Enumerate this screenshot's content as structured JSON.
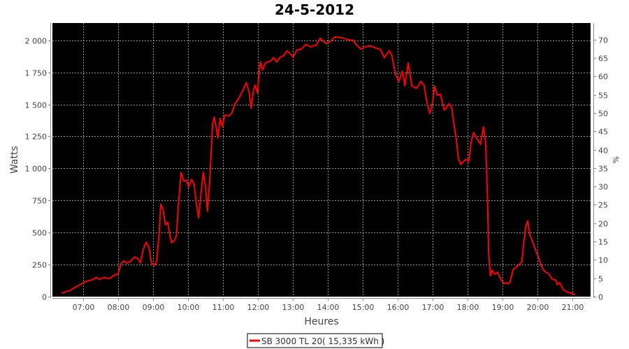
{
  "chart_data": {
    "type": "line",
    "title": "24-5-2012",
    "xlabel": "Heures",
    "ylabel": "Watts",
    "y2label": "%",
    "xlim": [
      "06:07",
      "21:31"
    ],
    "ylim": [
      0,
      2135
    ],
    "y2lim": [
      0,
      74.5
    ],
    "xticks": [
      "07:00",
      "08:00",
      "09:00",
      "10:00",
      "11:00",
      "12:00",
      "13:00",
      "14:00",
      "15:00",
      "16:00",
      "17:00",
      "18:00",
      "19:00",
      "20:00",
      "21:00"
    ],
    "yticks": [
      0,
      250,
      500,
      750,
      1000,
      1250,
      1500,
      1750,
      2000
    ],
    "ytick_labels": [
      "0",
      "250",
      "500",
      "750",
      "1 000",
      "1 250",
      "1 500",
      "1 750",
      "2 000"
    ],
    "y2ticks": [
      0,
      5,
      10,
      15,
      20,
      25,
      30,
      35,
      40,
      45,
      50,
      55,
      60,
      65,
      70
    ],
    "y2tick_labels": [
      "0",
      "5",
      "10",
      "15",
      "20",
      "25",
      "30",
      "35",
      "40",
      "45",
      "50",
      "55",
      "60",
      "65",
      "70"
    ],
    "grid": true,
    "background": "#000000",
    "legend_placement": "bottom",
    "series": [
      {
        "name": "SB 3000 TL 20( 15,335 kWh )",
        "color": "#ff0000",
        "x": [
          "06:23",
          "06:30",
          "06:36",
          "06:45",
          "06:55",
          "07:05",
          "07:15",
          "07:22",
          "07:28",
          "07:35",
          "07:45",
          "07:52",
          "08:00",
          "08:05",
          "08:10",
          "08:15",
          "08:22",
          "08:28",
          "08:33",
          "08:38",
          "08:43",
          "08:48",
          "08:53",
          "08:57",
          "09:03",
          "09:06",
          "09:10",
          "09:13",
          "09:17",
          "09:21",
          "09:25",
          "09:29",
          "09:32",
          "09:37",
          "09:40",
          "09:43",
          "09:48",
          "09:53",
          "09:57",
          "10:01",
          "10:06",
          "10:10",
          "10:15",
          "10:18",
          "10:22",
          "10:26",
          "10:30",
          "10:33",
          "10:37",
          "10:42",
          "10:45",
          "10:49",
          "10:51",
          "10:55",
          "10:59",
          "11:03",
          "11:10",
          "11:15",
          "11:20",
          "11:28",
          "11:35",
          "11:40",
          "11:45",
          "11:48",
          "11:52",
          "11:55",
          "11:59",
          "12:04",
          "12:08",
          "12:13",
          "12:22",
          "12:27",
          "12:32",
          "12:37",
          "12:44",
          "12:50",
          "13:00",
          "13:07",
          "13:14",
          "13:22",
          "13:30",
          "13:40",
          "13:47",
          "13:57",
          "14:06",
          "14:12",
          "14:22",
          "14:35",
          "14:43",
          "14:50",
          "14:57",
          "15:03",
          "15:13",
          "15:22",
          "15:30",
          "15:37",
          "15:45",
          "15:50",
          "15:56",
          "16:02",
          "16:08",
          "16:12",
          "16:18",
          "16:24",
          "16:32",
          "16:40",
          "16:45",
          "16:50",
          "16:55",
          "17:00",
          "17:03",
          "17:08",
          "17:13",
          "17:20",
          "17:28",
          "17:33",
          "17:35",
          "17:40",
          "17:44",
          "17:48",
          "17:52",
          "17:58",
          "18:02",
          "18:06",
          "18:10",
          "18:17",
          "18:22",
          "18:27",
          "18:31",
          "18:34",
          "18:36",
          "18:39",
          "18:42",
          "18:46",
          "18:51",
          "18:57",
          "19:02",
          "19:12",
          "19:18",
          "19:27",
          "19:33",
          "19:36",
          "19:40",
          "19:43",
          "19:47",
          "19:50",
          "19:56",
          "20:01",
          "20:06",
          "20:11",
          "20:20",
          "20:25",
          "20:31",
          "20:34",
          "20:38",
          "20:44",
          "20:52",
          "20:59",
          "21:05"
        ],
        "y": [
          25,
          40,
          45,
          70,
          95,
          120,
          130,
          150,
          135,
          150,
          140,
          165,
          180,
          260,
          280,
          260,
          280,
          310,
          300,
          262,
          370,
          425,
          380,
          260,
          245,
          280,
          480,
          720,
          680,
          560,
          580,
          470,
          420,
          440,
          480,
          700,
          970,
          900,
          910,
          855,
          915,
          880,
          700,
          615,
          800,
          970,
          850,
          665,
          900,
          1350,
          1400,
          1300,
          1237,
          1390,
          1330,
          1417,
          1410,
          1430,
          1500,
          1553,
          1620,
          1670,
          1590,
          1470,
          1600,
          1650,
          1590,
          1835,
          1770,
          1825,
          1840,
          1865,
          1830,
          1865,
          1880,
          1920,
          1870,
          1925,
          1930,
          1968,
          1950,
          1962,
          2017,
          1973,
          2000,
          2027,
          2022,
          2005,
          2000,
          1962,
          1930,
          1950,
          1957,
          1940,
          1930,
          1865,
          1920,
          1880,
          1735,
          1680,
          1760,
          1645,
          1825,
          1645,
          1625,
          1680,
          1650,
          1515,
          1430,
          1520,
          1645,
          1570,
          1580,
          1455,
          1505,
          1470,
          1390,
          1243,
          1080,
          1030,
          1052,
          1073,
          1052,
          1210,
          1280,
          1226,
          1188,
          1325,
          1200,
          774,
          338,
          163,
          207,
          175,
          190,
          136,
          104,
          104,
          212,
          245,
          270,
          410,
          555,
          590,
          480,
          447,
          370,
          316,
          245,
          201,
          174,
          136,
          130,
          93,
          110,
          55,
          33,
          25,
          16
        ]
      }
    ]
  }
}
